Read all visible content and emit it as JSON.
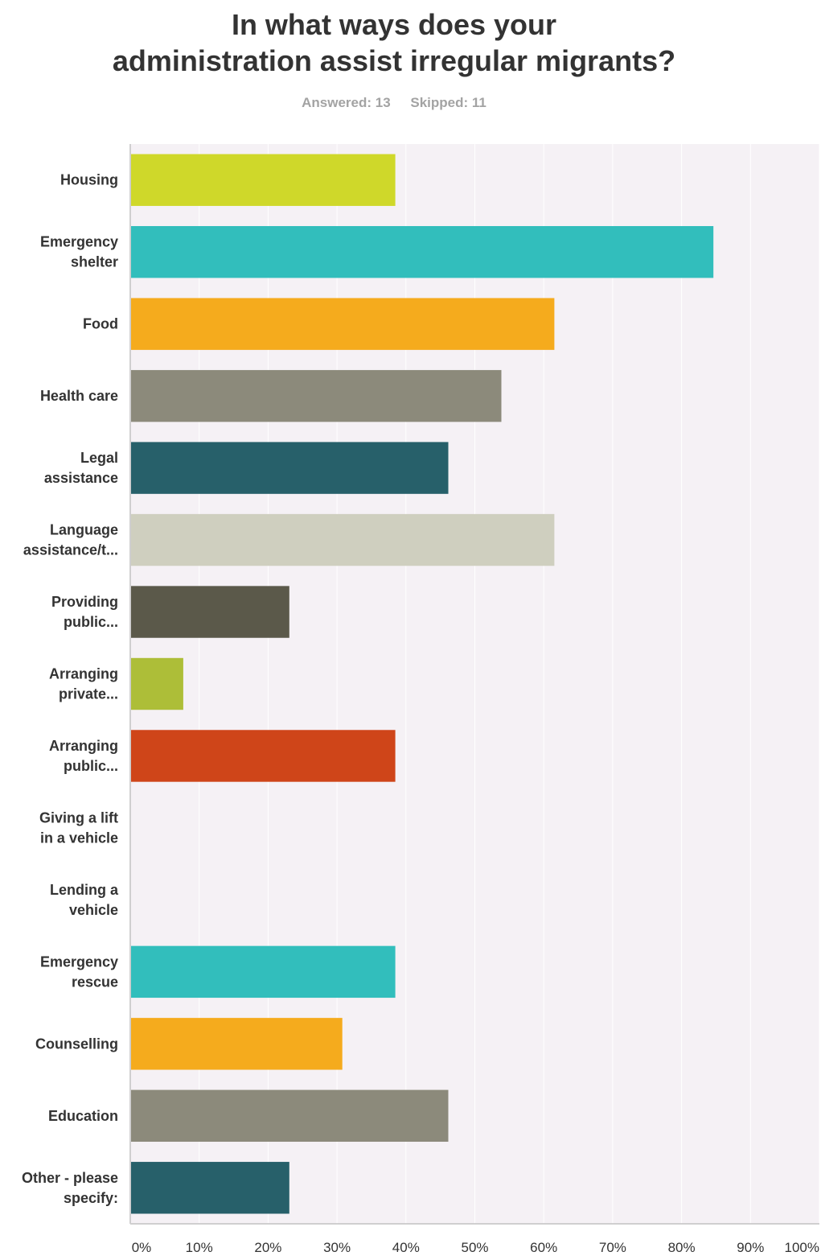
{
  "title_lines": [
    "In what ways does your",
    "administration assist irregular migrants?"
  ],
  "answered": "Answered: 13",
  "skipped": "Skipped: 11",
  "chart_data": {
    "type": "bar",
    "orientation": "horizontal",
    "title": "In what ways does your administration assist irregular migrants?",
    "categories": [
      [
        "Housing"
      ],
      [
        "Emergency",
        "shelter"
      ],
      [
        "Food"
      ],
      [
        "Health care"
      ],
      [
        "Legal",
        "assistance"
      ],
      [
        "Language",
        "assistance/t..."
      ],
      [
        "Providing",
        "public..."
      ],
      [
        "Arranging",
        "private..."
      ],
      [
        "Arranging",
        "public..."
      ],
      [
        "Giving a lift",
        "in a vehicle"
      ],
      [
        "Lending a",
        "vehicle"
      ],
      [
        "Emergency",
        "rescue"
      ],
      [
        "Counselling"
      ],
      [
        "Education"
      ],
      [
        "Other - please",
        "specify:"
      ]
    ],
    "values": [
      38.46,
      84.62,
      61.54,
      53.85,
      46.15,
      61.54,
      23.08,
      7.69,
      38.46,
      0,
      0,
      38.46,
      30.77,
      46.15,
      23.08
    ],
    "colors": [
      "#cfd82a",
      "#32bebc",
      "#f5ab1d",
      "#8c8a7b",
      "#27606a",
      "#cfcfbf",
      "#5b594a",
      "#adbe38",
      "#cf4519",
      "#32bebc",
      "#f5ab1d",
      "#32bebc",
      "#f5ab1d",
      "#8c8a7b",
      "#27606a"
    ],
    "xlim": [
      0,
      100
    ],
    "xticks": [
      "0%",
      "10%",
      "20%",
      "30%",
      "40%",
      "50%",
      "60%",
      "70%",
      "80%",
      "90%",
      "100%"
    ],
    "grid": true,
    "plot_background": "#f5f1f5",
    "grid_color": "#ffffff"
  }
}
